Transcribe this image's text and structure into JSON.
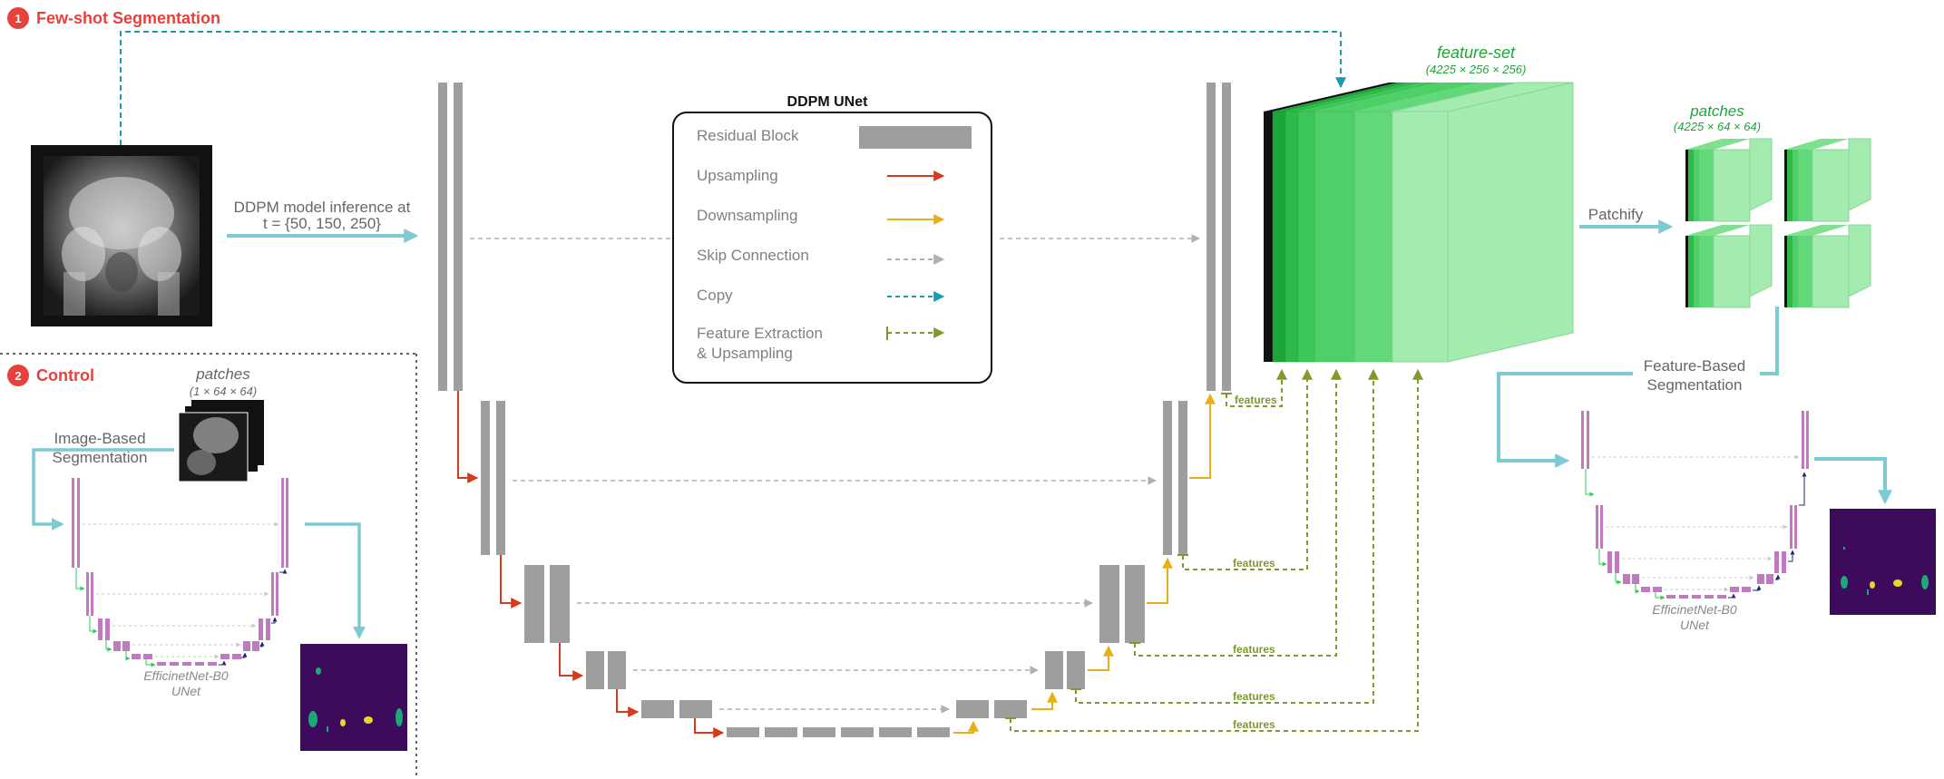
{
  "sections": {
    "fewshot": {
      "number": "1",
      "title": "Few-shot Segmentation"
    },
    "control": {
      "number": "2",
      "title": "Control"
    }
  },
  "inference_label": {
    "line1": "DDPM model inference at",
    "line2": "t = {50, 150, 250}"
  },
  "legend": {
    "title": "DDPM UNet",
    "items": {
      "residual": "Residual Block",
      "upsampling": "Upsampling",
      "downsampling": "Downsampling",
      "skip": "Skip Connection",
      "copy": "Copy",
      "feature_line1": "Feature Extraction",
      "feature_line2": "& Upsampling"
    }
  },
  "feature_set": {
    "title": "feature-set",
    "dims": "(4225 × 256 × 256)"
  },
  "patches_right": {
    "title": "patches",
    "dims": "(4225 × 64 × 64)"
  },
  "patches_left": {
    "title": "patches",
    "dims": "(1 × 64 × 64)"
  },
  "patchify_label": "Patchify",
  "feature_based": {
    "line1": "Feature-Based",
    "line2": "Segmentation"
  },
  "image_based": {
    "line1": "Image-Based",
    "line2": "Segmentation"
  },
  "unet_caption": {
    "line1": "EfficinetNet-B0",
    "line2": "UNet"
  },
  "features_label": "features",
  "colors": {
    "section_red": "#e8403a",
    "block_gray": "#9e9e9e",
    "upsampling": "#d63a1a",
    "downsampling": "#e6b016",
    "skip": "#b0b0b0",
    "copy": "#1a9ab0",
    "feature": "#7d9a2e",
    "arrow_teal": "#7ccbd3",
    "unet_purple": "#c07ac0",
    "mask_purple": "#3d0a5c"
  }
}
